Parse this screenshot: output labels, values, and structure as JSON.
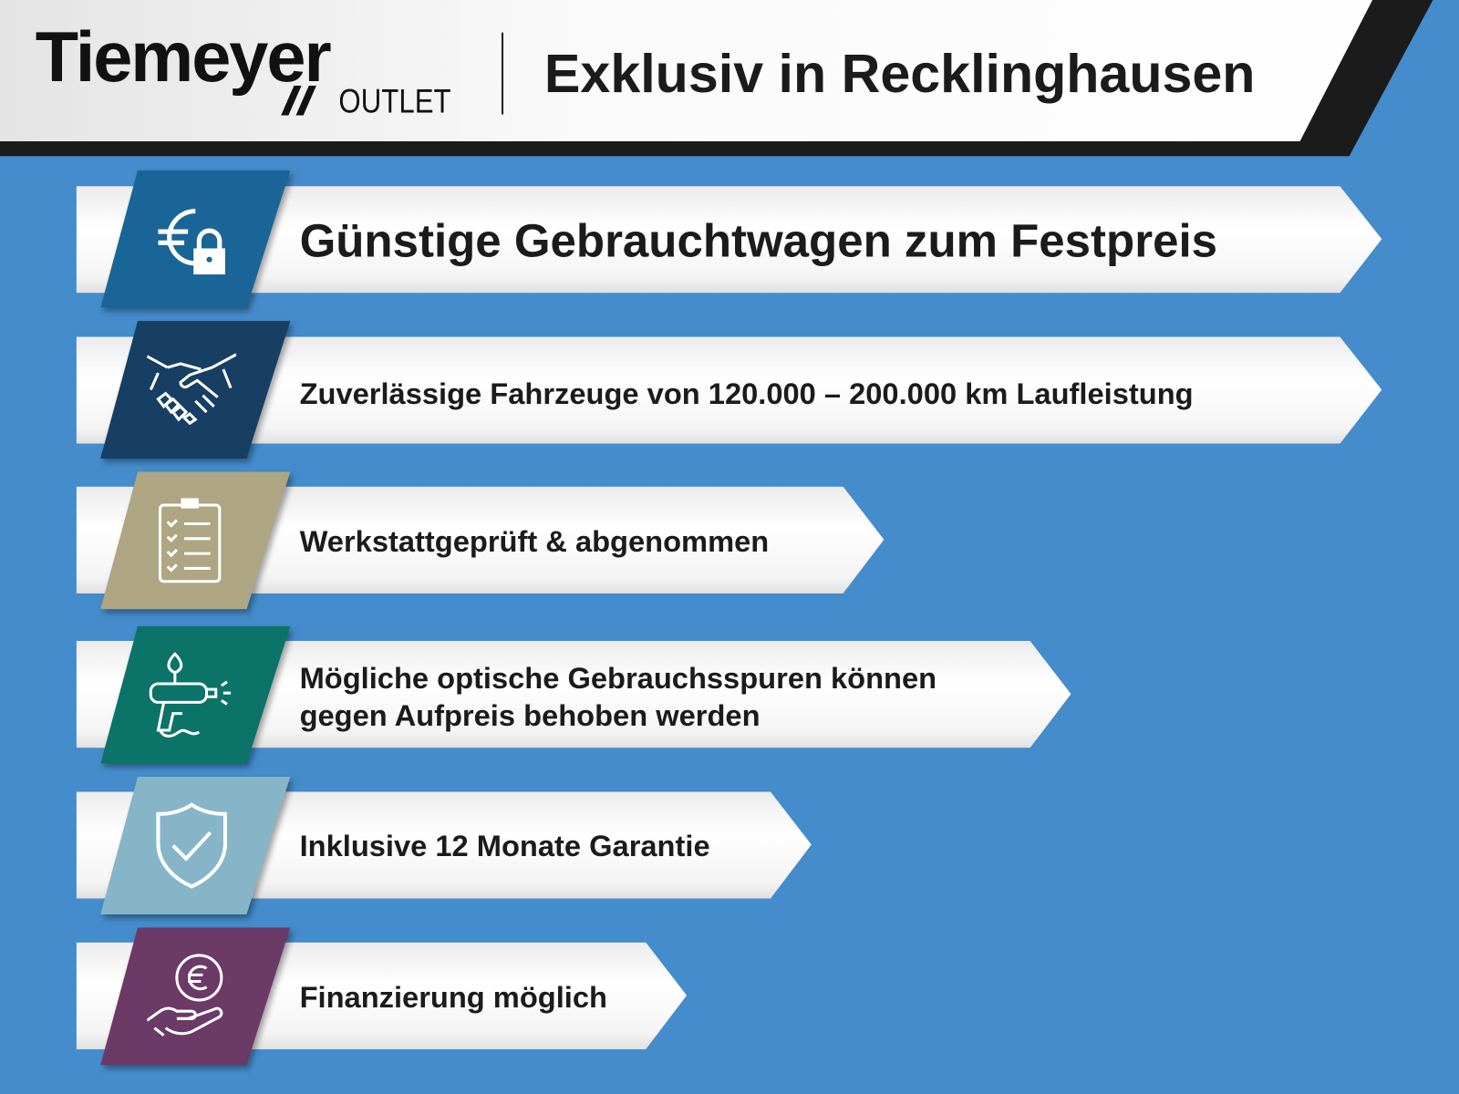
{
  "header": {
    "logo_main": "Tiemeyer",
    "logo_sub": "OUTLET",
    "title": "Exklusiv in Recklinghausen"
  },
  "colors": {
    "background": "#448ccb",
    "header_band": "#1b1b1b"
  },
  "features": [
    {
      "icon": "euro-lock-icon",
      "color": "#1a6597",
      "lines": [
        "Günstige Gebrauchtwagen zum Festpreis"
      ]
    },
    {
      "icon": "handshake-icon",
      "color": "#163f63",
      "lines": [
        "Zuverlässige Fahrzeuge von 120.000 – 200.000 km Laufleistung"
      ]
    },
    {
      "icon": "clipboard-checklist-icon",
      "color": "#aea583",
      "lines": [
        "Werkstattgeprüft & abgenommen"
      ]
    },
    {
      "icon": "spray-gun-icon",
      "color": "#0b7368",
      "lines": [
        "Mögliche optische Gebrauchsspuren können",
        "gegen Aufpreis behoben werden"
      ]
    },
    {
      "icon": "shield-check-icon",
      "color": "#86b5c8",
      "lines": [
        "Inklusive 12 Monate Garantie"
      ]
    },
    {
      "icon": "hand-euro-icon",
      "color": "#6b3a67",
      "lines": [
        "Finanzierung möglich"
      ]
    }
  ]
}
